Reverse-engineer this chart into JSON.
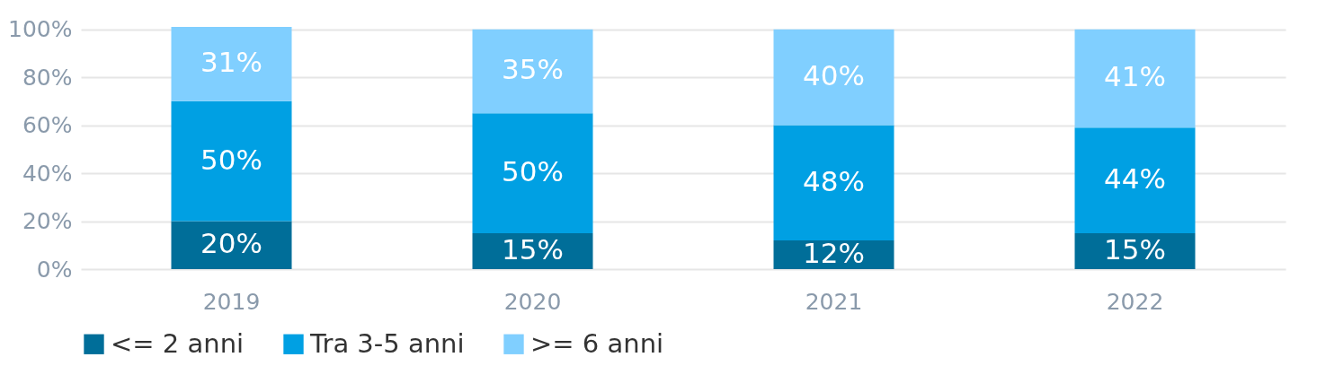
{
  "chart_data": {
    "type": "bar",
    "stacked": true,
    "categories": [
      "2019",
      "2020",
      "2021",
      "2022"
    ],
    "series": [
      {
        "name": "<= 2 anni",
        "color": "#006e99",
        "values": [
          20,
          15,
          12,
          15
        ],
        "value_labels": [
          "20%",
          "15%",
          "12%",
          "15%"
        ]
      },
      {
        "name": "Tra 3-5 anni",
        "color": "#00a0e3",
        "values": [
          50,
          50,
          48,
          44
        ],
        "value_labels": [
          "50%",
          "50%",
          "48%",
          "44%"
        ]
      },
      {
        "name": ">= 6 anni",
        "color": "#80cfff",
        "values": [
          31,
          35,
          40,
          41
        ],
        "value_labels": [
          "31%",
          "35%",
          "40%",
          "41%"
        ]
      }
    ],
    "ylim": [
      0,
      101
    ],
    "yticks": [
      {
        "value": 0,
        "label": "0%"
      },
      {
        "value": 20,
        "label": "20%"
      },
      {
        "value": 40,
        "label": "40%"
      },
      {
        "value": 60,
        "label": "60%"
      },
      {
        "value": 80,
        "label": "80%"
      },
      {
        "value": 100,
        "label": "100%"
      }
    ],
    "grid": "y",
    "legend": "bottom"
  }
}
